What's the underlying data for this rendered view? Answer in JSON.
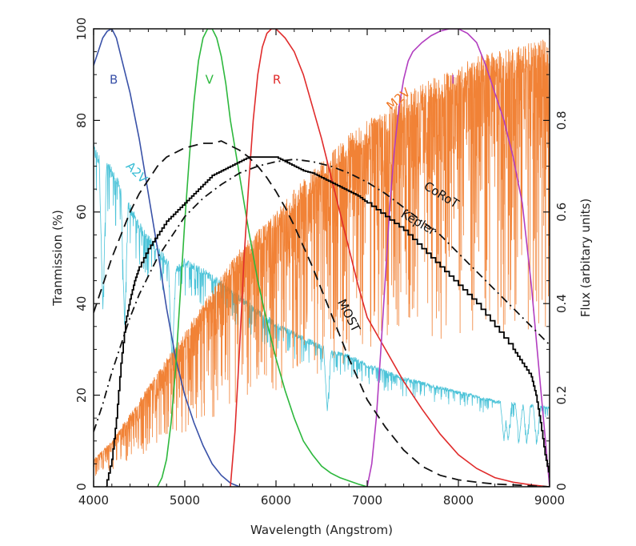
{
  "chart_data": {
    "type": "line",
    "title": "",
    "xlabel": "Wavelength (Angstrom)",
    "ylabel_left": "Tranmission (%)",
    "ylabel_right": "Flux (arbitary units)",
    "xlim": [
      4000,
      9000
    ],
    "ylim_left": [
      0,
      100
    ],
    "ylim_right": [
      0,
      1.0
    ],
    "x_ticks": [
      "4000",
      "5000",
      "6000",
      "7000",
      "8000",
      "9000"
    ],
    "y_ticks_left": [
      "0",
      "20",
      "40",
      "60",
      "80",
      "100"
    ],
    "y_ticks_right": [
      "0",
      "0.2",
      "0.4",
      "0.6",
      "0.8"
    ],
    "grid": false,
    "series": [
      {
        "name": "B",
        "axis": "left",
        "color": "#3a52a8",
        "style": "solid",
        "x": [
          4000,
          4050,
          4100,
          4150,
          4200,
          4250,
          4300,
          4400,
          4500,
          4600,
          4700,
          4800,
          4900,
          5000,
          5100,
          5200,
          5300,
          5400,
          5500,
          5600
        ],
        "y": [
          92,
          95,
          98,
          99.5,
          100,
          98,
          94,
          86,
          76,
          64,
          52,
          39,
          28,
          20,
          14,
          9,
          5,
          2.5,
          0.8,
          0
        ]
      },
      {
        "name": "V",
        "axis": "left",
        "color": "#2db83d",
        "style": "solid",
        "x": [
          4700,
          4750,
          4800,
          4850,
          4900,
          4950,
          5000,
          5050,
          5100,
          5150,
          5200,
          5250,
          5300,
          5350,
          5400,
          5450,
          5500,
          5600,
          5700,
          5800,
          5900,
          6000,
          6100,
          6200,
          6300,
          6400,
          6500,
          6600,
          6700,
          6800,
          6900,
          7000
        ],
        "y": [
          0,
          2,
          6,
          14,
          26,
          42,
          58,
          72,
          84,
          93,
          98,
          100,
          100,
          98,
          94,
          88,
          80,
          68,
          56,
          45,
          36,
          28,
          21,
          15,
          10,
          7,
          4.5,
          3,
          2,
          1.3,
          0.6,
          0
        ]
      },
      {
        "name": "R",
        "axis": "left",
        "color": "#e02b2b",
        "style": "solid",
        "x": [
          5500,
          5550,
          5600,
          5650,
          5700,
          5750,
          5800,
          5850,
          5900,
          5950,
          6000,
          6050,
          6100,
          6200,
          6300,
          6400,
          6500,
          6600,
          6700,
          6800,
          6900,
          7000,
          7200,
          7400,
          7600,
          7800,
          8000,
          8200,
          8400,
          8600,
          8800,
          9000
        ],
        "y": [
          0,
          12,
          30,
          50,
          66,
          80,
          90,
          96,
          99,
          100,
          100,
          99,
          98,
          95,
          90,
          83,
          76,
          68,
          60,
          52,
          44,
          37,
          30,
          23,
          17,
          11.5,
          7,
          4,
          2,
          1,
          0.4,
          0
        ]
      },
      {
        "name": "I",
        "axis": "left",
        "color": "#b23ec0",
        "style": "solid",
        "x": [
          7000,
          7050,
          7100,
          7150,
          7200,
          7250,
          7300,
          7350,
          7400,
          7450,
          7500,
          7600,
          7700,
          7800,
          7900,
          8000,
          8100,
          8200,
          8300,
          8400,
          8500,
          8600,
          8700,
          8800,
          8900,
          9000
        ],
        "y": [
          0,
          5,
          15,
          30,
          46,
          62,
          74,
          83,
          89,
          93,
          95,
          97,
          98.5,
          99.5,
          100,
          100,
          99,
          97,
          92,
          86,
          80,
          72,
          62,
          44,
          22,
          0
        ]
      },
      {
        "name": "CoRoT",
        "axis": "right",
        "color": "#111111",
        "style": "dashdot",
        "x": [
          4000,
          4100,
          4200,
          4300,
          4400,
          4500,
          4600,
          4700,
          4800,
          4900,
          5000,
          5200,
          5400,
          5600,
          5800,
          6000,
          6200,
          6400,
          6600,
          6800,
          7000,
          7200,
          7400,
          7600,
          7800,
          8000,
          8200,
          8400,
          8600,
          8800,
          9000
        ],
        "y": [
          0.12,
          0.18,
          0.25,
          0.31,
          0.37,
          0.42,
          0.46,
          0.5,
          0.53,
          0.56,
          0.59,
          0.63,
          0.66,
          0.685,
          0.7,
          0.71,
          0.715,
          0.71,
          0.7,
          0.685,
          0.665,
          0.64,
          0.61,
          0.58,
          0.55,
          0.51,
          0.47,
          0.43,
          0.39,
          0.35,
          0.31
        ]
      },
      {
        "name": "Kepler",
        "axis": "right",
        "color": "#000000",
        "style": "solid",
        "x": [
          4130,
          4200,
          4250,
          4300,
          4350,
          4400,
          4450,
          4500,
          4600,
          4700,
          4800,
          4900,
          5000,
          5100,
          5200,
          5300,
          5400,
          5500,
          5600,
          5700,
          5800,
          5900,
          6000,
          6100,
          6200,
          6300,
          6400,
          6500,
          6600,
          6700,
          6800,
          6900,
          7000,
          7200,
          7400,
          7600,
          7800,
          8000,
          8200,
          8400,
          8600,
          8700,
          8800,
          8850,
          8900,
          8950,
          9000
        ],
        "y": [
          0.0,
          0.06,
          0.15,
          0.27,
          0.36,
          0.41,
          0.45,
          0.48,
          0.52,
          0.55,
          0.58,
          0.6,
          0.62,
          0.64,
          0.66,
          0.68,
          0.69,
          0.7,
          0.71,
          0.72,
          0.72,
          0.72,
          0.72,
          0.71,
          0.7,
          0.69,
          0.685,
          0.675,
          0.665,
          0.655,
          0.645,
          0.635,
          0.62,
          0.59,
          0.56,
          0.52,
          0.48,
          0.44,
          0.4,
          0.35,
          0.3,
          0.27,
          0.24,
          0.2,
          0.14,
          0.07,
          0.02
        ]
      },
      {
        "name": "MOST",
        "axis": "right",
        "color": "#111111",
        "style": "dashed",
        "x": [
          4000,
          4100,
          4200,
          4300,
          4400,
          4500,
          4600,
          4700,
          4800,
          4900,
          5000,
          5100,
          5200,
          5300,
          5400,
          5500,
          5600,
          5700,
          5800,
          5900,
          6000,
          6100,
          6200,
          6300,
          6400,
          6500,
          6600,
          6700,
          6800,
          6900,
          7000,
          7200,
          7400,
          7600,
          7800,
          8000,
          8200,
          8400,
          8600,
          8800,
          9000
        ],
        "y": [
          0.38,
          0.44,
          0.5,
          0.55,
          0.6,
          0.64,
          0.67,
          0.7,
          0.72,
          0.73,
          0.74,
          0.745,
          0.75,
          0.75,
          0.755,
          0.745,
          0.735,
          0.72,
          0.7,
          0.675,
          0.645,
          0.61,
          0.57,
          0.525,
          0.48,
          0.43,
          0.38,
          0.33,
          0.28,
          0.235,
          0.19,
          0.13,
          0.08,
          0.045,
          0.025,
          0.015,
          0.01,
          0.006,
          0.004,
          0.002,
          0.0
        ]
      },
      {
        "name": "A2V",
        "axis": "right",
        "color": "#38bdd4",
        "style": "spectrum",
        "x": [
          4000,
          4050,
          4100,
          4150,
          4200,
          4250,
          4300,
          4350,
          4400,
          4450,
          4500,
          4600,
          4700,
          4800,
          4900,
          5000,
          5100,
          5200,
          5400,
          5600,
          5800,
          6000,
          6200,
          6400,
          6600,
          6800,
          7000,
          7200,
          7400,
          7600,
          7800,
          8000,
          8200,
          8400,
          8600,
          8800,
          9000
        ],
        "y": [
          0.75,
          0.73,
          0.72,
          0.71,
          0.7,
          0.68,
          0.66,
          0.64,
          0.62,
          0.6,
          0.58,
          0.55,
          0.53,
          0.5,
          0.48,
          0.5,
          0.49,
          0.48,
          0.45,
          0.42,
          0.39,
          0.36,
          0.34,
          0.32,
          0.3,
          0.29,
          0.27,
          0.255,
          0.24,
          0.23,
          0.22,
          0.21,
          0.2,
          0.19,
          0.185,
          0.18,
          0.175
        ]
      },
      {
        "name": "M2V",
        "axis": "right",
        "color": "#f07420",
        "style": "spectrum",
        "x": [
          4000,
          4200,
          4400,
          4600,
          4800,
          5000,
          5200,
          5400,
          5600,
          5800,
          6000,
          6200,
          6400,
          6600,
          6800,
          7000,
          7200,
          7400,
          7600,
          7800,
          8000,
          8200,
          8400,
          8600,
          8800,
          9000
        ],
        "y": [
          0.06,
          0.1,
          0.16,
          0.22,
          0.28,
          0.34,
          0.4,
          0.46,
          0.52,
          0.56,
          0.6,
          0.65,
          0.69,
          0.73,
          0.77,
          0.8,
          0.83,
          0.86,
          0.88,
          0.9,
          0.92,
          0.94,
          0.95,
          0.96,
          0.97,
          0.98
        ]
      }
    ]
  }
}
